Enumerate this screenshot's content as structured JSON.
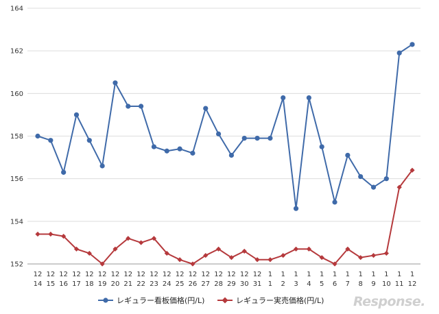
{
  "chart_data": {
    "type": "line",
    "title": "",
    "xlabel": "",
    "ylabel": "",
    "ylim": [
      152,
      164
    ],
    "yticks": [
      152,
      154,
      156,
      158,
      160,
      162,
      164
    ],
    "grid": true,
    "legend_position": "bottom",
    "categories": [
      [
        "12",
        "14"
      ],
      [
        "12",
        "15"
      ],
      [
        "12",
        "16"
      ],
      [
        "12",
        "17"
      ],
      [
        "12",
        "18"
      ],
      [
        "12",
        "19"
      ],
      [
        "12",
        "20"
      ],
      [
        "12",
        "21"
      ],
      [
        "12",
        "22"
      ],
      [
        "12",
        "23"
      ],
      [
        "12",
        "24"
      ],
      [
        "12",
        "25"
      ],
      [
        "12",
        "26"
      ],
      [
        "12",
        "27"
      ],
      [
        "12",
        "28"
      ],
      [
        "12",
        "29"
      ],
      [
        "12",
        "30"
      ],
      [
        "12",
        "31"
      ],
      [
        "1",
        "1"
      ],
      [
        "1",
        "2"
      ],
      [
        "1",
        "3"
      ],
      [
        "1",
        "4"
      ],
      [
        "1",
        "5"
      ],
      [
        "1",
        "6"
      ],
      [
        "1",
        "7"
      ],
      [
        "1",
        "8"
      ],
      [
        "1",
        "9"
      ],
      [
        "1",
        "10"
      ],
      [
        "1",
        "11"
      ],
      [
        "1",
        "12"
      ]
    ],
    "series": [
      {
        "name": "レギュラー看板価格(円/L)",
        "color": "#3f6aa9",
        "marker": "circle",
        "values": [
          158.0,
          157.8,
          156.3,
          159.0,
          157.8,
          156.6,
          160.5,
          159.4,
          159.4,
          157.5,
          157.3,
          157.4,
          157.2,
          159.3,
          158.1,
          157.1,
          157.9,
          157.9,
          157.9,
          159.8,
          154.6,
          159.8,
          157.5,
          154.9,
          157.1,
          156.1,
          155.6,
          156.0,
          161.9,
          162.3
        ]
      },
      {
        "name": "レギュラー実売価格(円/L)",
        "color": "#b5393c",
        "marker": "diamond",
        "values": [
          153.4,
          153.4,
          153.3,
          152.7,
          152.5,
          152.0,
          152.7,
          153.2,
          153.0,
          153.2,
          152.5,
          152.2,
          152.0,
          152.4,
          152.7,
          152.3,
          152.6,
          152.2,
          152.2,
          152.4,
          152.7,
          152.7,
          152.3,
          152.0,
          152.7,
          152.3,
          152.4,
          152.5,
          155.6,
          156.4
        ]
      }
    ]
  },
  "watermark": "Response."
}
